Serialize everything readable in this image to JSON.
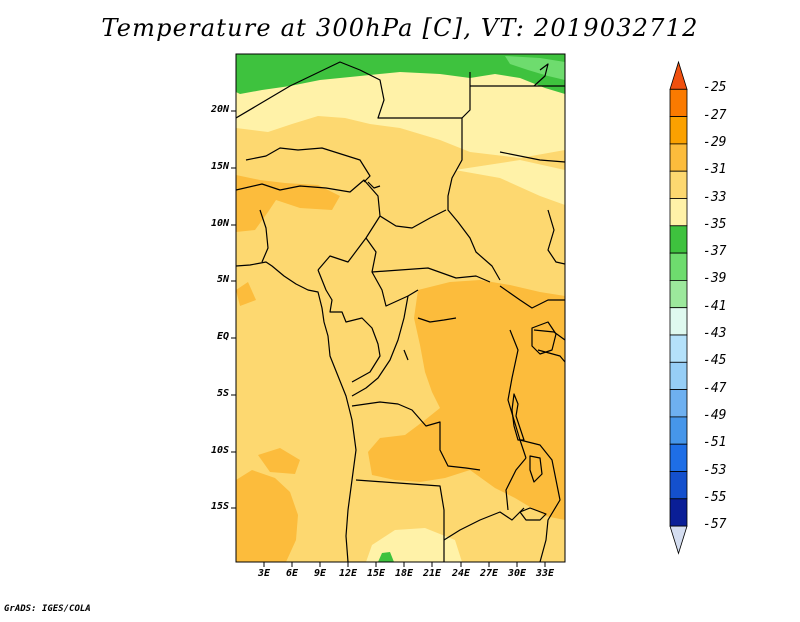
{
  "title": "Temperature at 300hPa [C], VT: 2019032712",
  "credit": "GrADS: IGES/COLA",
  "lat_labels": [
    "20N",
    "15N",
    "10N",
    "5N",
    "EQ",
    "5S",
    "10S",
    "15S"
  ],
  "lon_labels": [
    "3E",
    "6E",
    "9E",
    "12E",
    "15E",
    "18E",
    "21E",
    "24E",
    "27E",
    "30E",
    "33E"
  ],
  "colorbar": {
    "labels": [
      "-25",
      "-27",
      "-29",
      "-31",
      "-33",
      "-35",
      "-37",
      "-39",
      "-41",
      "-43",
      "-45",
      "-47",
      "-49",
      "-51",
      "-53",
      "-55",
      "-57"
    ],
    "colors": [
      "#f0500f",
      "#fa7a00",
      "#fba100",
      "#fcbc3c",
      "#fdd870",
      "#fff2a8",
      "#3ec23e",
      "#6edc6e",
      "#9ce89c",
      "#dff9ef",
      "#b4e1fa",
      "#96cef6",
      "#6eb0f0",
      "#4696ea",
      "#1e6ee6",
      "#1450cd",
      "#0a1e96",
      "#d4ddf0"
    ]
  },
  "map_colors": {
    "base": "#fdd870",
    "warm": "#fcbc3c",
    "cool": "#fff2a8",
    "green": "#3ec23e",
    "light_green": "#6edc6e"
  }
}
